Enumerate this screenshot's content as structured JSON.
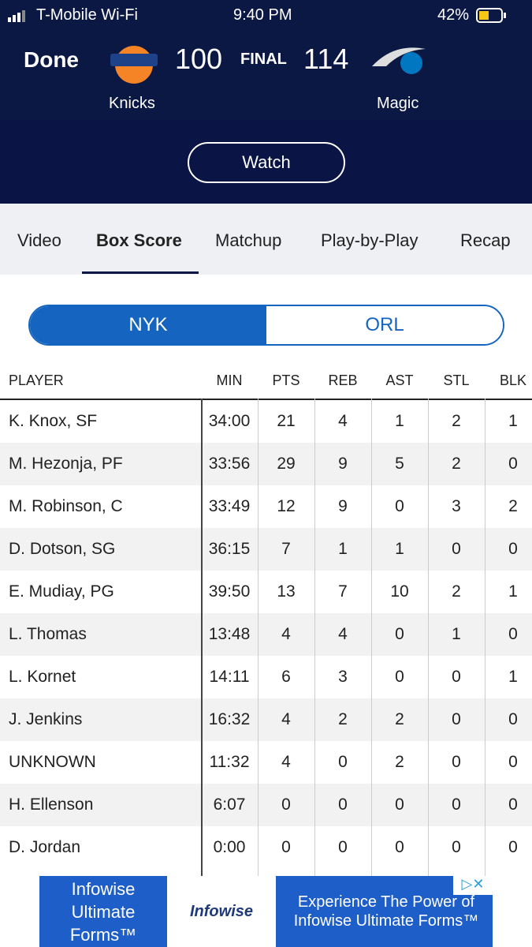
{
  "status_bar": {
    "carrier": "T-Mobile Wi-Fi",
    "time": "9:40 PM",
    "battery": "42%"
  },
  "header": {
    "done": "Done",
    "home_score": "100",
    "status": "FINAL",
    "away_score": "114",
    "home_team": "Knicks",
    "away_team": "Magic"
  },
  "watch": "Watch",
  "tabs": [
    "Video",
    "Box Score",
    "Matchup",
    "Play-by-Play",
    "Recap"
  ],
  "team_toggle": [
    "NYK",
    "ORL"
  ],
  "table": {
    "columns": [
      "PLAYER",
      "MIN",
      "PTS",
      "REB",
      "AST",
      "STL",
      "BLK"
    ],
    "rows": [
      [
        "K. Knox, SF",
        "34:00",
        21,
        4,
        1,
        2,
        1
      ],
      [
        "M. Hezonja, PF",
        "33:56",
        29,
        9,
        5,
        2,
        0
      ],
      [
        "M. Robinson, C",
        "33:49",
        12,
        9,
        0,
        3,
        2
      ],
      [
        "D. Dotson, SG",
        "36:15",
        7,
        1,
        1,
        0,
        0
      ],
      [
        "E. Mudiay, PG",
        "39:50",
        13,
        7,
        10,
        2,
        1
      ],
      [
        "L. Thomas",
        "13:48",
        4,
        4,
        0,
        1,
        0
      ],
      [
        "L. Kornet",
        "14:11",
        6,
        3,
        0,
        0,
        1
      ],
      [
        "J. Jenkins",
        "16:32",
        4,
        2,
        2,
        0,
        0
      ],
      [
        "UNKNOWN",
        "11:32",
        4,
        0,
        2,
        0,
        0
      ],
      [
        "H. Ellenson",
        "6:07",
        0,
        0,
        0,
        0,
        0
      ],
      [
        "D. Jordan",
        "0:00",
        0,
        0,
        0,
        0,
        0
      ]
    ]
  },
  "ad": {
    "left": "Infowise Ultimate Forms™",
    "logo": "Infowise",
    "right": "Experience The Power of Infowise Ultimate Forms™"
  }
}
